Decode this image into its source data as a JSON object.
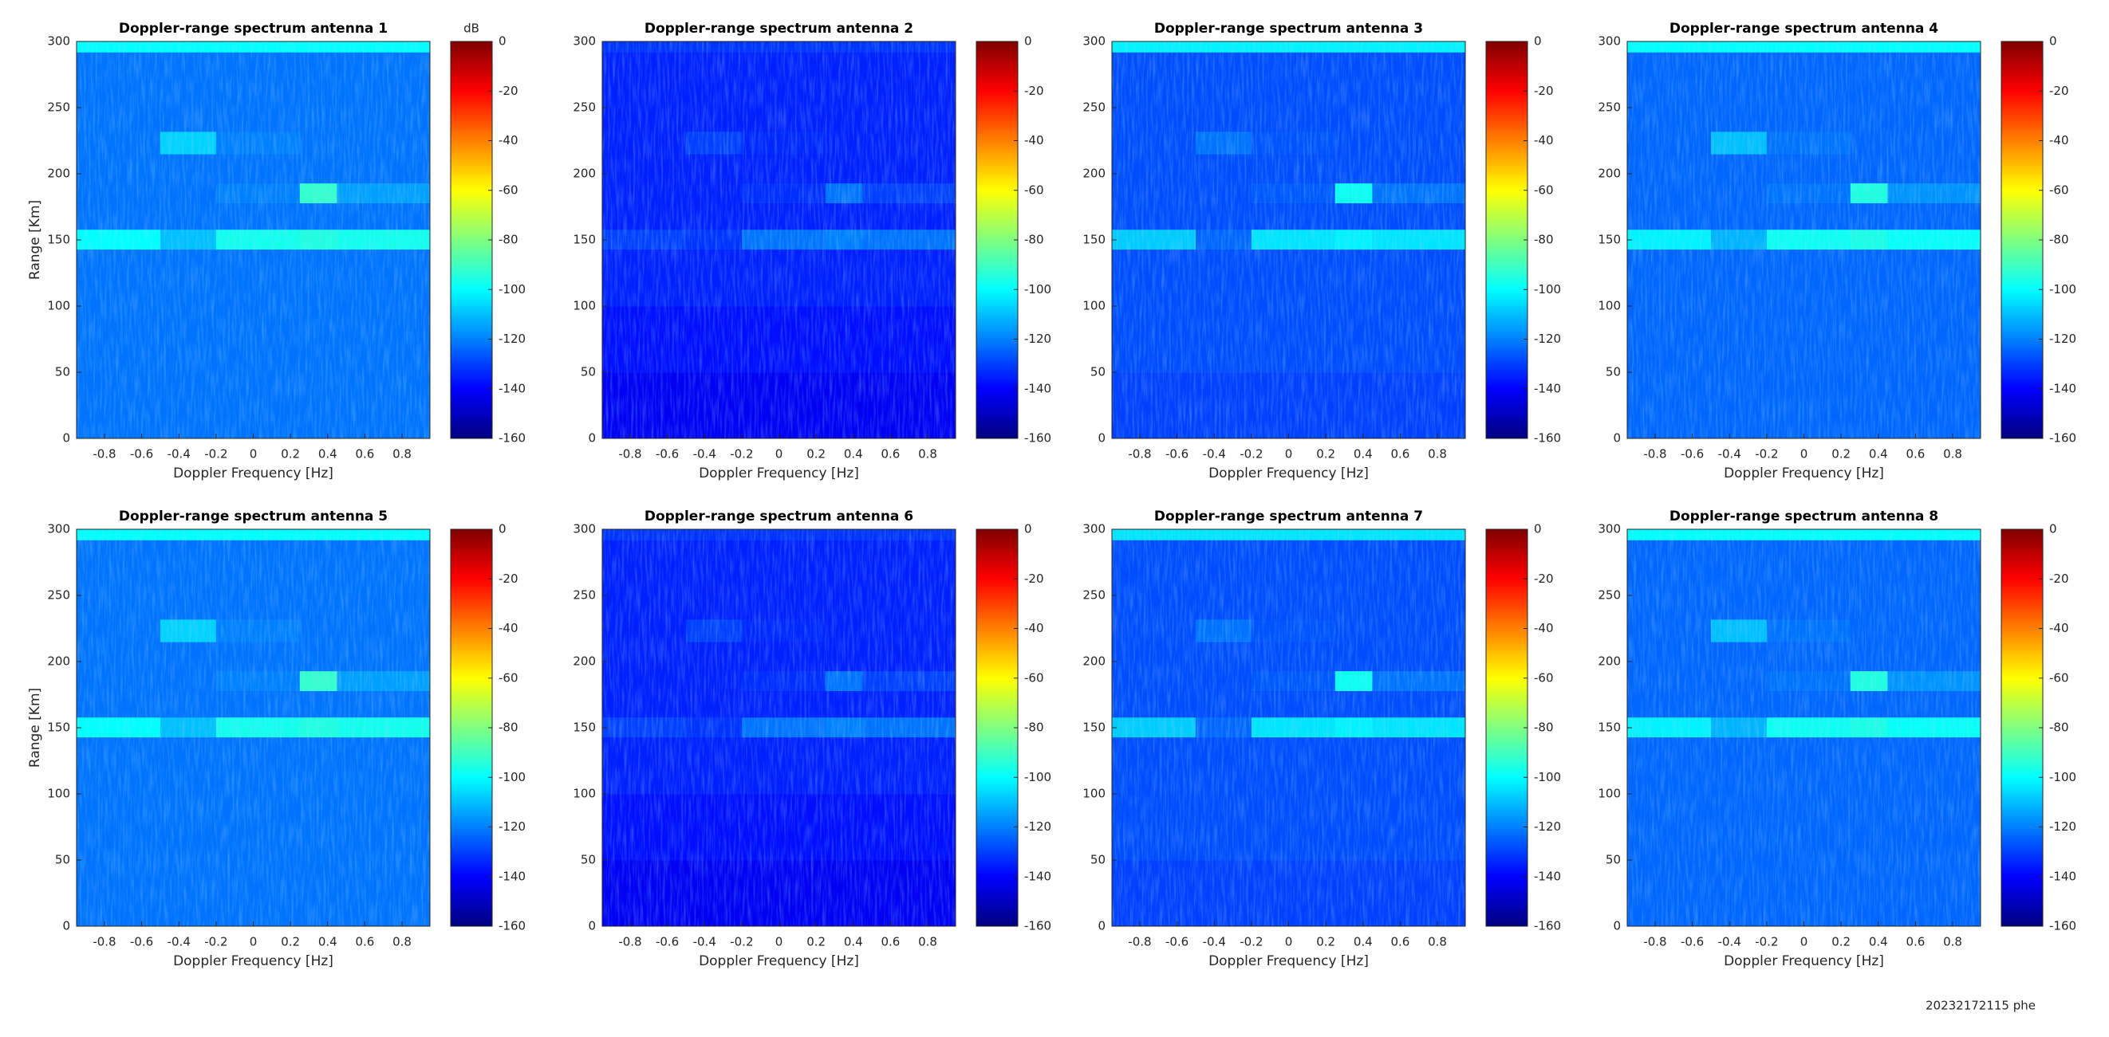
{
  "chart_data": [
    {
      "type": "heatmap",
      "title": "Doppler-range spectrum antenna 1",
      "xlabel": "Doppler Frequency [Hz]",
      "ylabel": "Range [Km]",
      "colorbar_label": "dB",
      "colormap": "jet",
      "x_edges": [
        -0.95,
        -0.5,
        -0.2,
        0.25,
        0.45,
        0.95
      ],
      "y_edges": [
        0,
        50,
        100,
        143,
        158,
        178,
        193,
        215,
        232,
        292,
        300
      ],
      "z": [
        [
          -122,
          -122,
          -122,
          -122,
          -122
        ],
        [
          -122,
          -122,
          -122,
          -122,
          -122
        ],
        [
          -122,
          -122,
          -122,
          -122,
          -122
        ],
        [
          -100,
          -110,
          -97,
          -95,
          -97
        ],
        [
          -122,
          -122,
          -122,
          -122,
          -122
        ],
        [
          -122,
          -122,
          -120,
          -92,
          -115
        ],
        [
          -122,
          -122,
          -122,
          -122,
          -122
        ],
        [
          -122,
          -107,
          -120,
          -122,
          -122
        ],
        [
          -122,
          -122,
          -122,
          -122,
          -122
        ],
        [
          -100,
          -100,
          -100,
          -100,
          -100
        ]
      ],
      "xlim": [
        -0.95,
        0.95
      ],
      "ylim": [
        0,
        300
      ],
      "xticks": [
        -0.8,
        -0.6,
        -0.4,
        -0.2,
        0,
        0.2,
        0.4,
        0.6,
        0.8
      ],
      "yticks": [
        0,
        50,
        100,
        150,
        200,
        250,
        300
      ],
      "clim": [
        -160,
        0
      ],
      "cticks": [
        0,
        -20,
        -40,
        -60,
        -80,
        -100,
        -120,
        -140,
        -160
      ]
    },
    {
      "type": "heatmap",
      "title": "Doppler-range spectrum antenna 2",
      "xlabel": "Doppler Frequency [Hz]",
      "colormap": "jet",
      "x_edges": [
        -0.95,
        -0.5,
        -0.2,
        0.25,
        0.45,
        0.95
      ],
      "y_edges": [
        0,
        50,
        100,
        143,
        158,
        178,
        193,
        215,
        232,
        292,
        300
      ],
      "z": [
        [
          -142,
          -142,
          -142,
          -142,
          -142
        ],
        [
          -138,
          -138,
          -138,
          -138,
          -138
        ],
        [
          -135,
          -135,
          -135,
          -135,
          -135
        ],
        [
          -130,
          -132,
          -122,
          -120,
          -122
        ],
        [
          -135,
          -135,
          -135,
          -135,
          -135
        ],
        [
          -135,
          -135,
          -133,
          -122,
          -130
        ],
        [
          -135,
          -135,
          -135,
          -135,
          -135
        ],
        [
          -135,
          -130,
          -134,
          -135,
          -135
        ],
        [
          -135,
          -135,
          -135,
          -135,
          -135
        ],
        [
          -132,
          -132,
          -132,
          -132,
          -132
        ]
      ],
      "xlim": [
        -0.95,
        0.95
      ],
      "ylim": [
        0,
        300
      ],
      "xticks": [
        -0.8,
        -0.6,
        -0.4,
        -0.2,
        0,
        0.2,
        0.4,
        0.6,
        0.8
      ],
      "yticks": [
        0,
        50,
        100,
        150,
        200,
        250,
        300
      ],
      "clim": [
        -160,
        0
      ],
      "cticks": [
        0,
        -20,
        -40,
        -60,
        -80,
        -100,
        -120,
        -140,
        -160
      ]
    },
    {
      "type": "heatmap",
      "title": "Doppler-range spectrum antenna 3",
      "xlabel": "Doppler Frequency [Hz]",
      "colormap": "jet",
      "x_edges": [
        -0.95,
        -0.5,
        -0.2,
        0.25,
        0.45,
        0.95
      ],
      "y_edges": [
        0,
        50,
        100,
        143,
        158,
        178,
        193,
        215,
        232,
        292,
        300
      ],
      "z": [
        [
          -130,
          -130,
          -130,
          -130,
          -130
        ],
        [
          -128,
          -128,
          -128,
          -128,
          -128
        ],
        [
          -128,
          -128,
          -128,
          -128,
          -128
        ],
        [
          -108,
          -124,
          -104,
          -102,
          -104
        ],
        [
          -128,
          -128,
          -128,
          -128,
          -128
        ],
        [
          -128,
          -128,
          -126,
          -98,
          -122
        ],
        [
          -128,
          -128,
          -128,
          -128,
          -128
        ],
        [
          -128,
          -122,
          -127,
          -128,
          -128
        ],
        [
          -128,
          -128,
          -128,
          -128,
          -128
        ],
        [
          -102,
          -102,
          -102,
          -102,
          -102
        ]
      ],
      "xlim": [
        -0.95,
        0.95
      ],
      "ylim": [
        0,
        300
      ],
      "xticks": [
        -0.8,
        -0.6,
        -0.4,
        -0.2,
        0,
        0.2,
        0.4,
        0.6,
        0.8
      ],
      "yticks": [
        0,
        50,
        100,
        150,
        200,
        250,
        300
      ],
      "clim": [
        -160,
        0
      ],
      "cticks": [
        0,
        -20,
        -40,
        -60,
        -80,
        -100,
        -120,
        -140,
        -160
      ]
    },
    {
      "type": "heatmap",
      "title": "Doppler-range spectrum antenna 4",
      "xlabel": "Doppler Frequency [Hz]",
      "colormap": "jet",
      "x_edges": [
        -0.95,
        -0.5,
        -0.2,
        0.25,
        0.45,
        0.95
      ],
      "y_edges": [
        0,
        50,
        100,
        143,
        158,
        178,
        193,
        215,
        232,
        292,
        300
      ],
      "z": [
        [
          -124,
          -124,
          -124,
          -124,
          -124
        ],
        [
          -124,
          -124,
          -124,
          -124,
          -124
        ],
        [
          -124,
          -124,
          -124,
          -124,
          -124
        ],
        [
          -102,
          -112,
          -98,
          -96,
          -99
        ],
        [
          -124,
          -124,
          -124,
          -124,
          -124
        ],
        [
          -124,
          -124,
          -122,
          -95,
          -117
        ],
        [
          -124,
          -124,
          -124,
          -124,
          -124
        ],
        [
          -124,
          -110,
          -122,
          -124,
          -124
        ],
        [
          -124,
          -124,
          -124,
          -124,
          -124
        ],
        [
          -100,
          -100,
          -100,
          -100,
          -100
        ]
      ],
      "xlim": [
        -0.95,
        0.95
      ],
      "ylim": [
        0,
        300
      ],
      "xticks": [
        -0.8,
        -0.6,
        -0.4,
        -0.2,
        0,
        0.2,
        0.4,
        0.6,
        0.8
      ],
      "yticks": [
        0,
        50,
        100,
        150,
        200,
        250,
        300
      ],
      "clim": [
        -160,
        0
      ],
      "cticks": [
        0,
        -20,
        -40,
        -60,
        -80,
        -100,
        -120,
        -140,
        -160
      ]
    },
    {
      "type": "heatmap",
      "title": "Doppler-range spectrum antenna 5",
      "xlabel": "Doppler Frequency [Hz]",
      "ylabel": "Range [Km]",
      "colormap": "jet",
      "x_edges": [
        -0.95,
        -0.5,
        -0.2,
        0.25,
        0.45,
        0.95
      ],
      "y_edges": [
        0,
        50,
        100,
        143,
        158,
        178,
        193,
        215,
        232,
        292,
        300
      ],
      "z": [
        [
          -122,
          -122,
          -122,
          -122,
          -122
        ],
        [
          -122,
          -122,
          -122,
          -122,
          -122
        ],
        [
          -122,
          -122,
          -122,
          -122,
          -122
        ],
        [
          -100,
          -110,
          -97,
          -95,
          -97
        ],
        [
          -122,
          -122,
          -122,
          -122,
          -122
        ],
        [
          -122,
          -122,
          -120,
          -92,
          -115
        ],
        [
          -122,
          -122,
          -122,
          -122,
          -122
        ],
        [
          -122,
          -107,
          -120,
          -122,
          -122
        ],
        [
          -122,
          -122,
          -122,
          -122,
          -122
        ],
        [
          -100,
          -100,
          -100,
          -100,
          -100
        ]
      ],
      "xlim": [
        -0.95,
        0.95
      ],
      "ylim": [
        0,
        300
      ],
      "xticks": [
        -0.8,
        -0.6,
        -0.4,
        -0.2,
        0,
        0.2,
        0.4,
        0.6,
        0.8
      ],
      "yticks": [
        0,
        50,
        100,
        150,
        200,
        250,
        300
      ],
      "clim": [
        -160,
        0
      ],
      "cticks": [
        0,
        -20,
        -40,
        -60,
        -80,
        -100,
        -120,
        -140,
        -160
      ]
    },
    {
      "type": "heatmap",
      "title": "Doppler-range spectrum antenna 6",
      "xlabel": "Doppler Frequency [Hz]",
      "colormap": "jet",
      "x_edges": [
        -0.95,
        -0.5,
        -0.2,
        0.25,
        0.45,
        0.95
      ],
      "y_edges": [
        0,
        50,
        100,
        143,
        158,
        178,
        193,
        215,
        232,
        292,
        300
      ],
      "z": [
        [
          -142,
          -142,
          -142,
          -142,
          -142
        ],
        [
          -138,
          -138,
          -138,
          -138,
          -138
        ],
        [
          -135,
          -135,
          -135,
          -135,
          -135
        ],
        [
          -130,
          -132,
          -122,
          -120,
          -122
        ],
        [
          -135,
          -135,
          -135,
          -135,
          -135
        ],
        [
          -135,
          -135,
          -133,
          -122,
          -130
        ],
        [
          -135,
          -135,
          -135,
          -135,
          -135
        ],
        [
          -135,
          -130,
          -134,
          -135,
          -135
        ],
        [
          -135,
          -135,
          -135,
          -135,
          -135
        ],
        [
          -132,
          -132,
          -132,
          -132,
          -132
        ]
      ],
      "xlim": [
        -0.95,
        0.95
      ],
      "ylim": [
        0,
        300
      ],
      "xticks": [
        -0.8,
        -0.6,
        -0.4,
        -0.2,
        0,
        0.2,
        0.4,
        0.6,
        0.8
      ],
      "yticks": [
        0,
        50,
        100,
        150,
        200,
        250,
        300
      ],
      "clim": [
        -160,
        0
      ],
      "cticks": [
        0,
        -20,
        -40,
        -60,
        -80,
        -100,
        -120,
        -140,
        -160
      ]
    },
    {
      "type": "heatmap",
      "title": "Doppler-range spectrum antenna 7",
      "xlabel": "Doppler Frequency [Hz]",
      "colormap": "jet",
      "x_edges": [
        -0.95,
        -0.5,
        -0.2,
        0.25,
        0.45,
        0.95
      ],
      "y_edges": [
        0,
        50,
        100,
        143,
        158,
        178,
        193,
        215,
        232,
        292,
        300
      ],
      "z": [
        [
          -130,
          -130,
          -130,
          -130,
          -130
        ],
        [
          -128,
          -128,
          -128,
          -128,
          -128
        ],
        [
          -128,
          -128,
          -128,
          -128,
          -128
        ],
        [
          -108,
          -124,
          -104,
          -102,
          -104
        ],
        [
          -128,
          -128,
          -128,
          -128,
          -128
        ],
        [
          -128,
          -128,
          -126,
          -98,
          -122
        ],
        [
          -128,
          -128,
          -128,
          -128,
          -128
        ],
        [
          -128,
          -122,
          -127,
          -128,
          -128
        ],
        [
          -128,
          -128,
          -128,
          -128,
          -128
        ],
        [
          -104,
          -104,
          -104,
          -104,
          -104
        ]
      ],
      "xlim": [
        -0.95,
        0.95
      ],
      "ylim": [
        0,
        300
      ],
      "xticks": [
        -0.8,
        -0.6,
        -0.4,
        -0.2,
        0,
        0.2,
        0.4,
        0.6,
        0.8
      ],
      "yticks": [
        0,
        50,
        100,
        150,
        200,
        250,
        300
      ],
      "clim": [
        -160,
        0
      ],
      "cticks": [
        0,
        -20,
        -40,
        -60,
        -80,
        -100,
        -120,
        -140,
        -160
      ]
    },
    {
      "type": "heatmap",
      "title": "Doppler-range spectrum antenna 8",
      "xlabel": "Doppler Frequency [Hz]",
      "colormap": "jet",
      "x_edges": [
        -0.95,
        -0.5,
        -0.2,
        0.25,
        0.45,
        0.95
      ],
      "y_edges": [
        0,
        50,
        100,
        143,
        158,
        178,
        193,
        215,
        232,
        292,
        300
      ],
      "z": [
        [
          -124,
          -124,
          -124,
          -124,
          -124
        ],
        [
          -124,
          -124,
          -124,
          -124,
          -124
        ],
        [
          -124,
          -124,
          -124,
          -124,
          -124
        ],
        [
          -102,
          -112,
          -98,
          -96,
          -99
        ],
        [
          -124,
          -124,
          -124,
          -124,
          -124
        ],
        [
          -124,
          -124,
          -122,
          -95,
          -117
        ],
        [
          -124,
          -124,
          -124,
          -124,
          -124
        ],
        [
          -124,
          -110,
          -122,
          -124,
          -124
        ],
        [
          -124,
          -124,
          -124,
          -124,
          -124
        ],
        [
          -100,
          -100,
          -100,
          -100,
          -100
        ]
      ],
      "xlim": [
        -0.95,
        0.95
      ],
      "ylim": [
        0,
        300
      ],
      "xticks": [
        -0.8,
        -0.6,
        -0.4,
        -0.2,
        0,
        0.2,
        0.4,
        0.6,
        0.8
      ],
      "yticks": [
        0,
        50,
        100,
        150,
        200,
        250,
        300
      ],
      "clim": [
        -160,
        0
      ],
      "cticks": [
        0,
        -20,
        -40,
        -60,
        -80,
        -100,
        -120,
        -140,
        -160
      ]
    }
  ],
  "footer": "20232172115 phe"
}
